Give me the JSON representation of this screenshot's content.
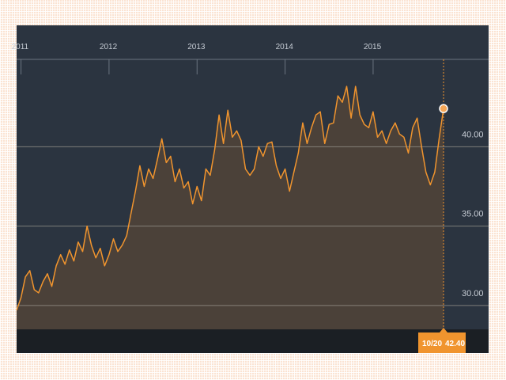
{
  "chart_data": {
    "type": "area",
    "x_ticks": [
      "2011",
      "2012",
      "2013",
      "2014",
      "2015"
    ],
    "y_ticks": [
      "30.00",
      "35.00",
      "40.00"
    ],
    "y_tick_values": [
      30,
      35,
      40
    ],
    "ylim": [
      28.5,
      45.5
    ],
    "grid": true,
    "last_point": {
      "date": "10/20",
      "value_label": "42.40",
      "value": 42.4
    },
    "colors": {
      "line": "#f0942e",
      "background": "#2b3440",
      "label_box": "#f0942e"
    },
    "series": [
      {
        "x": [
          2010.95,
          2011.0,
          2011.05,
          2011.1,
          2011.15,
          2011.2,
          2011.25,
          2011.3,
          2011.35,
          2011.4,
          2011.45,
          2011.5,
          2011.55,
          2011.6,
          2011.65,
          2011.7,
          2011.75,
          2011.8,
          2011.85,
          2011.9,
          2011.95,
          2012.0,
          2012.05,
          2012.1,
          2012.15,
          2012.2,
          2012.25,
          2012.3,
          2012.35,
          2012.4,
          2012.45,
          2012.5,
          2012.55,
          2012.6,
          2012.65,
          2012.7,
          2012.75,
          2012.8,
          2012.85,
          2012.9,
          2012.95,
          2013.0,
          2013.05,
          2013.1,
          2013.15,
          2013.2,
          2013.25,
          2013.3,
          2013.35,
          2013.4,
          2013.45,
          2013.5,
          2013.55,
          2013.6,
          2013.65,
          2013.7,
          2013.75,
          2013.8,
          2013.85,
          2013.9,
          2013.95,
          2014.0,
          2014.05,
          2014.1,
          2014.15,
          2014.2,
          2014.25,
          2014.3,
          2014.35,
          2014.4,
          2014.45,
          2014.5,
          2014.55,
          2014.6,
          2014.65,
          2014.7,
          2014.75,
          2014.8,
          2014.85,
          2014.9,
          2014.95,
          2015.0,
          2015.05,
          2015.1,
          2015.15,
          2015.2,
          2015.25,
          2015.3,
          2015.35,
          2015.4,
          2015.45,
          2015.5,
          2015.55,
          2015.6,
          2015.65,
          2015.7,
          2015.75,
          2015.8
        ],
        "y": [
          29.7,
          30.5,
          31.8,
          32.2,
          31.0,
          30.8,
          31.5,
          32.0,
          31.2,
          32.5,
          33.2,
          32.6,
          33.5,
          32.8,
          34.0,
          33.4,
          35.0,
          33.8,
          33.0,
          33.6,
          32.5,
          33.2,
          34.2,
          33.4,
          33.8,
          34.4,
          35.8,
          37.2,
          38.8,
          37.5,
          38.6,
          38.0,
          39.2,
          40.5,
          39.0,
          39.4,
          37.8,
          38.6,
          37.4,
          37.8,
          36.4,
          37.5,
          36.6,
          38.6,
          38.2,
          39.8,
          42.0,
          40.2,
          42.3,
          40.6,
          41.0,
          40.4,
          38.6,
          38.2,
          38.6,
          40.0,
          39.4,
          40.2,
          40.3,
          38.8,
          38.0,
          38.6,
          37.2,
          38.4,
          39.6,
          41.5,
          40.2,
          41.2,
          42.0,
          42.2,
          40.2,
          41.4,
          41.5,
          43.2,
          42.8,
          43.8,
          41.8,
          43.8,
          42.0,
          41.4,
          41.2,
          42.2,
          40.6,
          41.0,
          40.2,
          41.0,
          41.5,
          40.8,
          40.6,
          39.6,
          41.2,
          41.8,
          40.0,
          38.4,
          37.6,
          38.4,
          40.5,
          42.4
        ]
      }
    ]
  }
}
